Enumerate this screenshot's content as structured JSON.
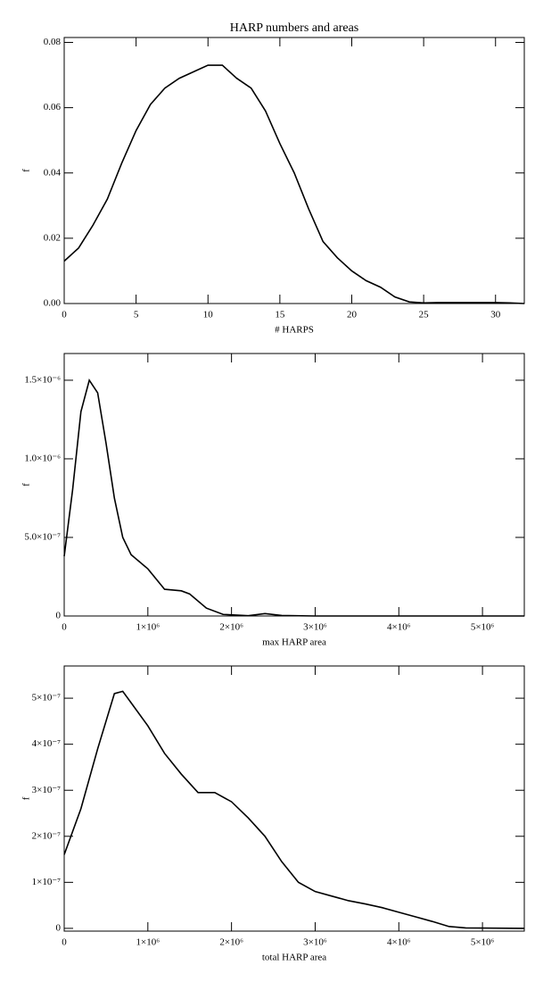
{
  "chart_data": [
    {
      "type": "line",
      "title": "HARP numbers and areas",
      "xlabel": "# HARPS",
      "ylabel": "f",
      "color": "#000000",
      "x": [
        0,
        1,
        2,
        3,
        4,
        5,
        6,
        7,
        8,
        9,
        10,
        11,
        12,
        13,
        14,
        15,
        16,
        17,
        18,
        19,
        20,
        21,
        22,
        23,
        24,
        25,
        26,
        27,
        28,
        29,
        30,
        31,
        32
      ],
      "values": [
        0.013,
        0.017,
        0.024,
        0.032,
        0.043,
        0.053,
        0.061,
        0.066,
        0.069,
        0.071,
        0.073,
        0.073,
        0.069,
        0.066,
        0.059,
        0.049,
        0.04,
        0.029,
        0.019,
        0.014,
        0.01,
        0.007,
        0.005,
        0.002,
        0.0005,
        0.0002,
        0.0003,
        0.0003,
        0.0003,
        0.0003,
        0.0003,
        0.0002,
        0.0
      ],
      "xlim": [
        0,
        32
      ],
      "xticks": [
        0,
        5,
        10,
        15,
        20,
        25,
        30
      ],
      "ylim": [
        0,
        0.0815
      ],
      "yticks": [
        {
          "value": 0,
          "label": "0.00"
        },
        0.02,
        0.04,
        0.06,
        0.08
      ]
    },
    {
      "type": "line",
      "xlabel": "max HARP area",
      "ylabel": "f",
      "color": "#000000",
      "x": [
        0,
        100000,
        200000,
        300000,
        400000,
        500000,
        600000,
        700000,
        800000,
        1000000,
        1200000,
        1400000,
        1500000,
        1700000,
        1900000,
        2200000,
        2400000,
        2600000,
        3000000,
        4000000,
        5500000
      ],
      "values": [
        3.8e-07,
        8e-07,
        1.3e-06,
        1.5e-06,
        1.42e-06,
        1.1e-06,
        7.5e-07,
        5e-07,
        3.9e-07,
        3e-07,
        1.7e-07,
        1.6e-07,
        1.4e-07,
        5e-08,
        1e-08,
        2e-09,
        1.5e-08,
        3e-09,
        0,
        0,
        0
      ],
      "xlim": [
        0,
        5500000
      ],
      "xticks": [
        0,
        {
          "value": 1000000,
          "label": "1×10⁶"
        },
        {
          "value": 2000000,
          "label": "2×10⁶"
        },
        {
          "value": 3000000,
          "label": "3×10⁶"
        },
        {
          "value": 4000000,
          "label": "4×10⁶"
        },
        {
          "value": 5000000,
          "label": "5×10⁶"
        }
      ],
      "ylim": [
        0,
        1.67e-06
      ],
      "yticks": [
        0,
        {
          "value": 5e-07,
          "label": "5.0×10⁻⁷"
        },
        {
          "value": 1e-06,
          "label": "1.0×10⁻⁶"
        },
        {
          "value": 1.5e-06,
          "label": "1.5×10⁻⁶"
        }
      ]
    },
    {
      "type": "line",
      "xlabel": "total HARP area",
      "ylabel": "f",
      "color": "#000000",
      "x": [
        0,
        200000,
        400000,
        600000,
        700000,
        800000,
        1000000,
        1200000,
        1400000,
        1600000,
        1800000,
        2000000,
        2200000,
        2400000,
        2600000,
        2800000,
        3000000,
        3200000,
        3400000,
        3600000,
        3800000,
        4000000,
        4200000,
        4400000,
        4600000,
        4800000,
        5500000
      ],
      "values": [
        1.6e-07,
        2.6e-07,
        3.9e-07,
        5.1e-07,
        5.15e-07,
        4.9e-07,
        4.4e-07,
        3.8e-07,
        3.35e-07,
        2.95e-07,
        2.95e-07,
        2.75e-07,
        2.4e-07,
        2e-07,
        1.45e-07,
        1e-07,
        8e-08,
        7e-08,
        6e-08,
        5.3e-08,
        4.5e-08,
        3.5e-08,
        2.5e-08,
        1.5e-08,
        4e-09,
        1e-09,
        0
      ],
      "xlim": [
        0,
        5500000
      ],
      "xticks": [
        0,
        {
          "value": 1000000,
          "label": "1×10⁶"
        },
        {
          "value": 2000000,
          "label": "2×10⁶"
        },
        {
          "value": 3000000,
          "label": "3×10⁶"
        },
        {
          "value": 4000000,
          "label": "4×10⁶"
        },
        {
          "value": 5000000,
          "label": "5×10⁶"
        }
      ],
      "ylim": [
        -6e-09,
        5.7e-07
      ],
      "yticks": [
        0,
        {
          "value": 1e-07,
          "label": "1×10⁻⁷"
        },
        {
          "value": 2e-07,
          "label": "2×10⁻⁷"
        },
        {
          "value": 3e-07,
          "label": "3×10⁻⁷"
        },
        {
          "value": 4e-07,
          "label": "4×10⁻⁷"
        },
        {
          "value": 5e-07,
          "label": "5×10⁻⁷"
        }
      ]
    }
  ]
}
